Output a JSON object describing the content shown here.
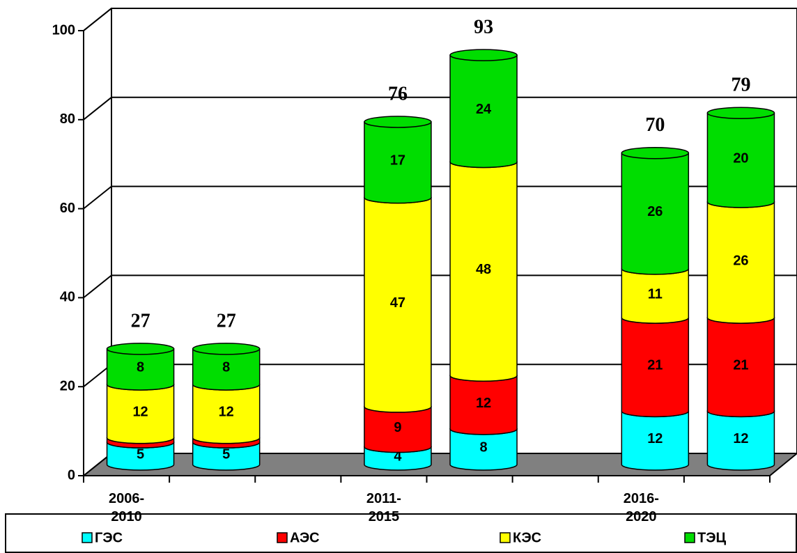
{
  "chart_data": {
    "type": "cylinder-stacked-bar",
    "categories": [
      "2006-\n2010",
      null,
      null,
      "2011-\n2015",
      null,
      null,
      "2016-\n2020",
      null
    ],
    "series": [
      {
        "name": "ГЭС",
        "color": "#00ffff",
        "values": [
          5,
          5,
          null,
          4,
          8,
          null,
          12,
          12
        ]
      },
      {
        "name": "АЭС",
        "color": "#ff0000",
        "values": [
          1,
          1,
          null,
          9,
          12,
          null,
          21,
          21
        ],
        "value_labels": [
          null,
          null,
          null,
          "9",
          "12",
          null,
          "21",
          "21"
        ]
      },
      {
        "name": "КЭС",
        "color": "#ffff00",
        "values": [
          12,
          12,
          null,
          47,
          48,
          null,
          11,
          26
        ]
      },
      {
        "name": "ТЭЦ",
        "color": "#00dd00",
        "values": [
          8,
          8,
          null,
          17,
          24,
          null,
          26,
          20
        ]
      }
    ],
    "totals": [
      27,
      27,
      null,
      76,
      93,
      null,
      70,
      79
    ],
    "ylim": [
      0,
      100
    ],
    "yticks": [
      0,
      20,
      40,
      60,
      80,
      100
    ],
    "grid": true
  }
}
